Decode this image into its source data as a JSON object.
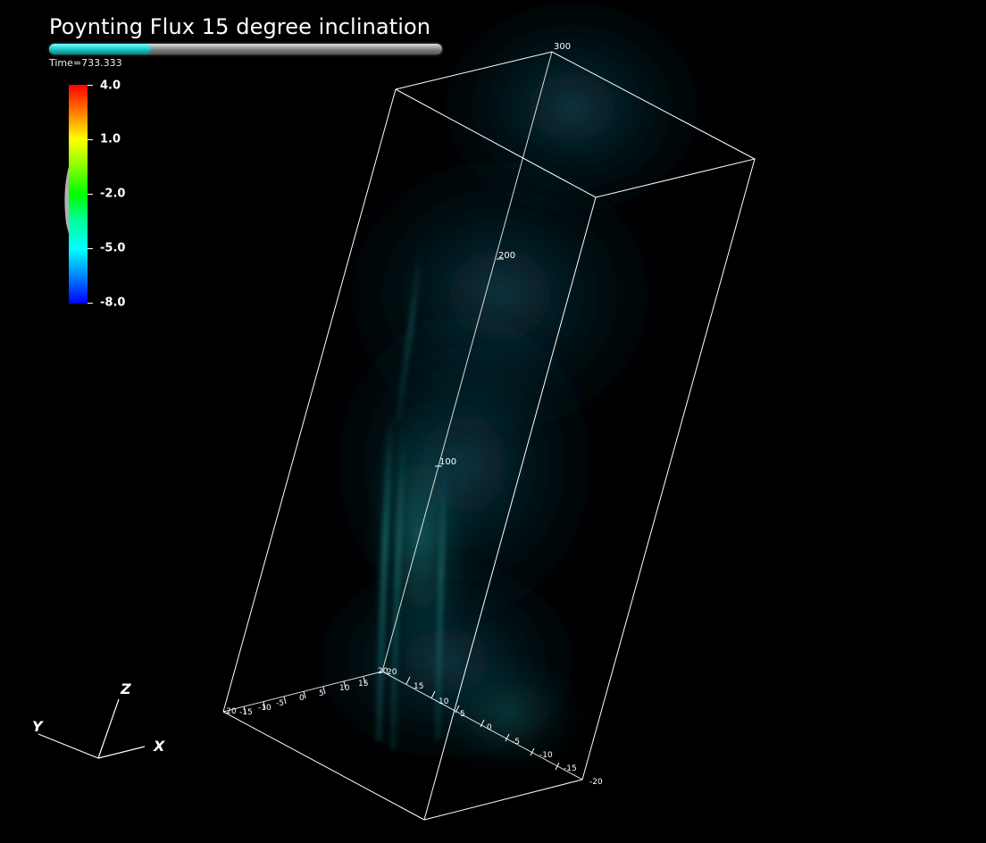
{
  "title": "Poynting Flux 15 degree inclination",
  "time": {
    "label": "Time=733.333",
    "progress_fraction": 0.26,
    "fill_color": "#12bdbd"
  },
  "colorbar": {
    "labels": [
      "4.0",
      "1.0",
      "-2.0",
      "-5.0",
      "-8.0"
    ],
    "colormap": "rainbow",
    "max": 4.0,
    "min": -8.0
  },
  "box_axes": {
    "z_ticks": [
      "300",
      "200",
      "100"
    ],
    "x_ticks": [
      "20",
      "15",
      "10",
      "5",
      "0",
      "-5",
      "-10",
      "-15",
      "-20"
    ],
    "y_ticks": [
      "20",
      "15",
      "10",
      "5",
      "0",
      "-5",
      "-10",
      "-15",
      "-20"
    ]
  },
  "orientation_axes": {
    "x": "X",
    "y": "Y",
    "z": "Z"
  },
  "volume_color": "#1a8a8a",
  "background_color": "#000000"
}
